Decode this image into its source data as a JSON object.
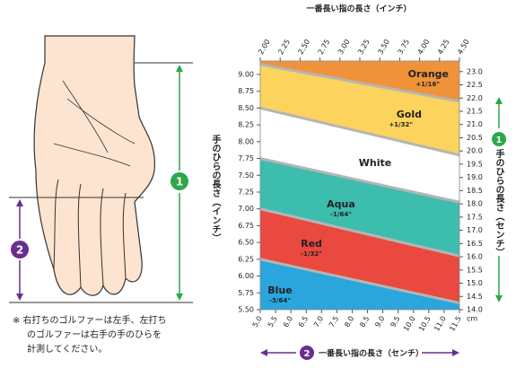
{
  "chart_data": {
    "type": "band",
    "x_title": "一番長い指の長さ（センチ）",
    "x2_title": "一番長い指の長さ（インチ）",
    "y_title": "手のひらの長さ（インチ）",
    "y2_title": "手のひらの長さ（センチ）",
    "x_unit": "cm",
    "palm_marker": "1",
    "finger_marker": "2",
    "note": [
      "※ 右打ちのゴルファーは左手、左打ち",
      "のゴルファーは右手の手のひらを",
      "計測してください。"
    ],
    "x": [
      5.0,
      11.5
    ],
    "series": [
      {
        "name": "Orange",
        "adjust": "+1/16\"",
        "color": "#f0923a",
        "values": [
          9.2,
          9.2
        ]
      },
      {
        "name": "Gold",
        "adjust": "+1/32\"",
        "color": "#fcd35c",
        "values": [
          9.15,
          8.6
        ]
      },
      {
        "name": "White",
        "color": "#ffffff",
        "values": [
          8.5,
          7.8
        ]
      },
      {
        "name": "Aqua",
        "adjust": "-1/64\"",
        "color": "#3dbdae",
        "values": [
          7.75,
          7.1
        ]
      },
      {
        "name": "Red",
        "adjust": "-1/32\"",
        "color": "#e9493f",
        "values": [
          7.0,
          6.3
        ]
      },
      {
        "name": "Blue",
        "adjust": "-3/64\"",
        "color": "#2aa6dd",
        "values": [
          6.25,
          5.6
        ]
      }
    ],
    "xlim": [
      5.0,
      11.5
    ],
    "xticks": [
      {
        "value": 5.0,
        "label": "5.0"
      },
      5.5,
      {
        "value": 6.0,
        "label": "6.0"
      },
      6.5,
      {
        "value": 7.0,
        "label": "7.0"
      },
      7.5,
      {
        "value": 8.0,
        "label": "8.0"
      },
      8.5,
      {
        "value": 9.0,
        "label": "9.0"
      },
      9.5,
      {
        "value": 10.0,
        "label": "10.0"
      },
      10.5,
      {
        "value": 11.0,
        "label": "11.0"
      },
      11.5
    ],
    "x2lim": [
      2.0,
      4.5
    ],
    "x2ticks": [
      {
        "value": 2.0,
        "label": "2.00"
      },
      2.25,
      {
        "value": 2.5,
        "label": "2.50"
      },
      2.75,
      {
        "value": 3.0,
        "label": "3.00"
      },
      3.25,
      {
        "value": 3.5,
        "label": "3.50"
      },
      3.75,
      {
        "value": 4.0,
        "label": "4.00"
      },
      4.25,
      {
        "value": 4.5,
        "label": "4.50"
      }
    ],
    "ylim": [
      5.5,
      9.2
    ],
    "yticks": [
      {
        "value": 5.5,
        "label": "5.50"
      },
      5.75,
      {
        "value": 6.0,
        "label": "6.00"
      },
      6.25,
      {
        "value": 6.5,
        "label": "6.50"
      },
      6.75,
      {
        "value": 7.0,
        "label": "7.00"
      },
      7.25,
      {
        "value": 7.5,
        "label": "7.50"
      },
      7.75,
      {
        "value": 8.0,
        "label": "8.00"
      },
      8.25,
      {
        "value": 8.5,
        "label": "8.50"
      },
      8.75,
      {
        "value": 9.0,
        "label": "9.00"
      }
    ],
    "y2lim": [
      14.0,
      23.4
    ],
    "y2ticks": [
      {
        "value": 14.0,
        "label": "14.0"
      },
      14.5,
      {
        "value": 15.0,
        "label": "15.0"
      },
      15.5,
      {
        "value": 16.0,
        "label": "16.0"
      },
      16.5,
      {
        "value": 17.0,
        "label": "17.0"
      },
      17.5,
      {
        "value": 18.0,
        "label": "18.0"
      },
      18.5,
      {
        "value": 19.0,
        "label": "19.0"
      },
      19.5,
      {
        "value": 20.0,
        "label": "20.0"
      },
      20.5,
      {
        "value": 21.0,
        "label": "21.0"
      },
      21.5,
      {
        "value": 22.0,
        "label": "22.0"
      },
      22.5,
      {
        "value": 23.0,
        "label": "23.0"
      }
    ]
  }
}
